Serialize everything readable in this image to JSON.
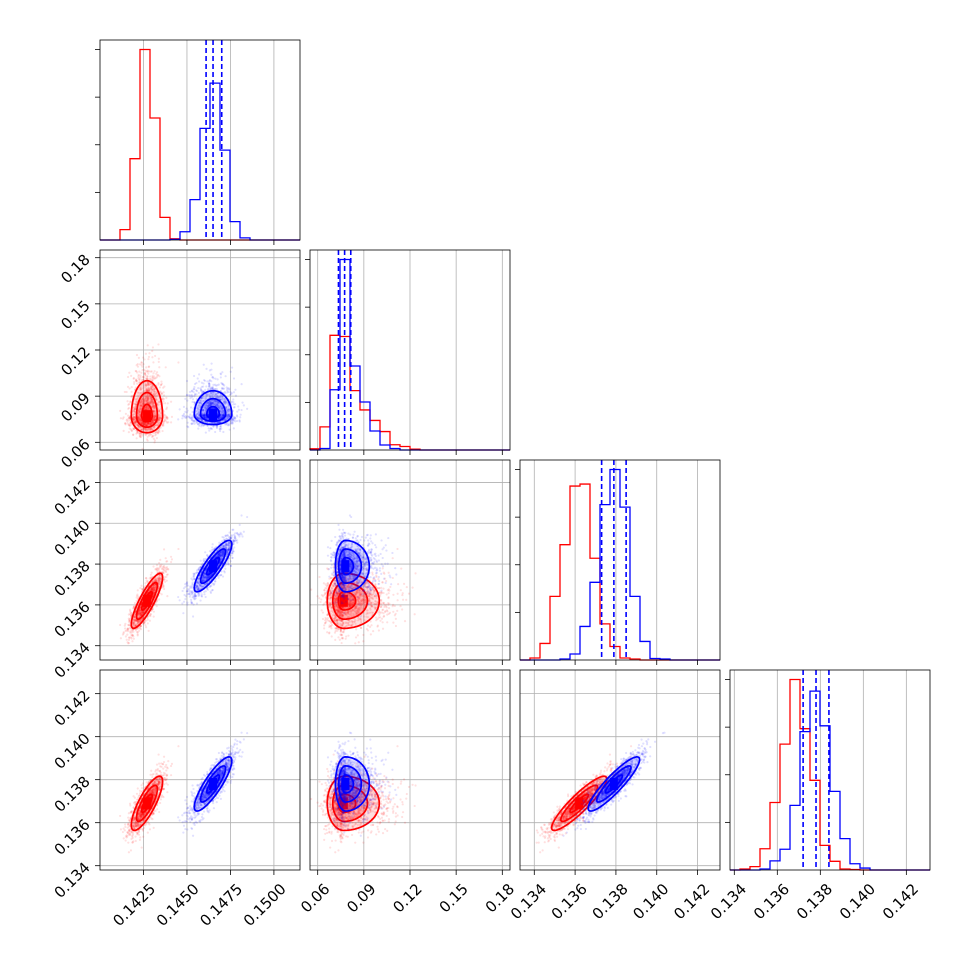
{
  "colors": {
    "series_a": "#ff0000",
    "series_b": "#0000ff",
    "grid": "#b0b0b0",
    "axes": "#000000"
  },
  "chart_data": {
    "type": "corner",
    "n_params": 4,
    "grid": true,
    "axes": [
      {
        "range": [
          0.14,
          0.1515
        ],
        "ticks": [
          0.1425,
          0.145,
          0.1475,
          0.15
        ],
        "tick_labels": [
          "0.1425",
          "0.1450",
          "0.1475",
          "0.1500"
        ]
      },
      {
        "range": [
          0.055,
          0.185
        ],
        "ticks": [
          0.06,
          0.09,
          0.12,
          0.15,
          0.18
        ],
        "tick_labels": [
          "0.06",
          "0.09",
          "0.12",
          "0.15",
          "0.18"
        ]
      },
      {
        "range": [
          0.1333,
          0.1431
        ],
        "ticks": [
          0.134,
          0.136,
          0.138,
          0.14,
          0.142
        ],
        "tick_labels": [
          "0.134",
          "0.136",
          "0.138",
          "0.140",
          "0.142"
        ]
      },
      {
        "range": [
          0.1338,
          0.1431
        ],
        "ticks": [
          0.134,
          0.136,
          0.138,
          0.14,
          0.142
        ],
        "tick_labels": [
          "0.134",
          "0.136",
          "0.138",
          "0.140",
          "0.142"
        ]
      }
    ],
    "series": [
      {
        "color": "#ff0000",
        "means": [
          0.1427,
          0.077,
          0.1362,
          0.1369
        ],
        "sds": [
          0.0005,
          0.01,
          0.00075,
          0.0007
        ],
        "corr": [
          [
            1,
            0,
            0.85,
            0.8
          ],
          [
            0,
            1,
            0,
            0
          ],
          [
            0.85,
            0,
            1,
            0.9
          ],
          [
            0.8,
            0,
            0.9,
            1
          ]
        ],
        "skew": [
          0,
          1.6,
          0,
          0
        ],
        "quantiles": [
          null,
          null,
          null,
          null
        ]
      },
      {
        "color": "#0000ff",
        "means": [
          0.1465,
          0.078,
          0.1379,
          0.1378
        ],
        "sds": [
          0.0006,
          0.006,
          0.0007,
          0.0007
        ],
        "corr": [
          [
            1,
            0,
            0.85,
            0.85
          ],
          [
            0,
            1,
            0,
            0
          ],
          [
            0.85,
            0,
            1,
            0.9
          ],
          [
            0.85,
            0,
            0.9,
            1
          ]
        ],
        "skew": [
          0,
          1.8,
          0,
          0
        ],
        "quantiles": [
          [
            0.1461,
            0.1465,
            0.147
          ],
          [
            0.0735,
            0.0775,
            0.0815
          ],
          [
            0.1373,
            0.1379,
            0.1385
          ],
          [
            0.1372,
            0.1378,
            0.1384
          ]
        ]
      }
    ]
  }
}
